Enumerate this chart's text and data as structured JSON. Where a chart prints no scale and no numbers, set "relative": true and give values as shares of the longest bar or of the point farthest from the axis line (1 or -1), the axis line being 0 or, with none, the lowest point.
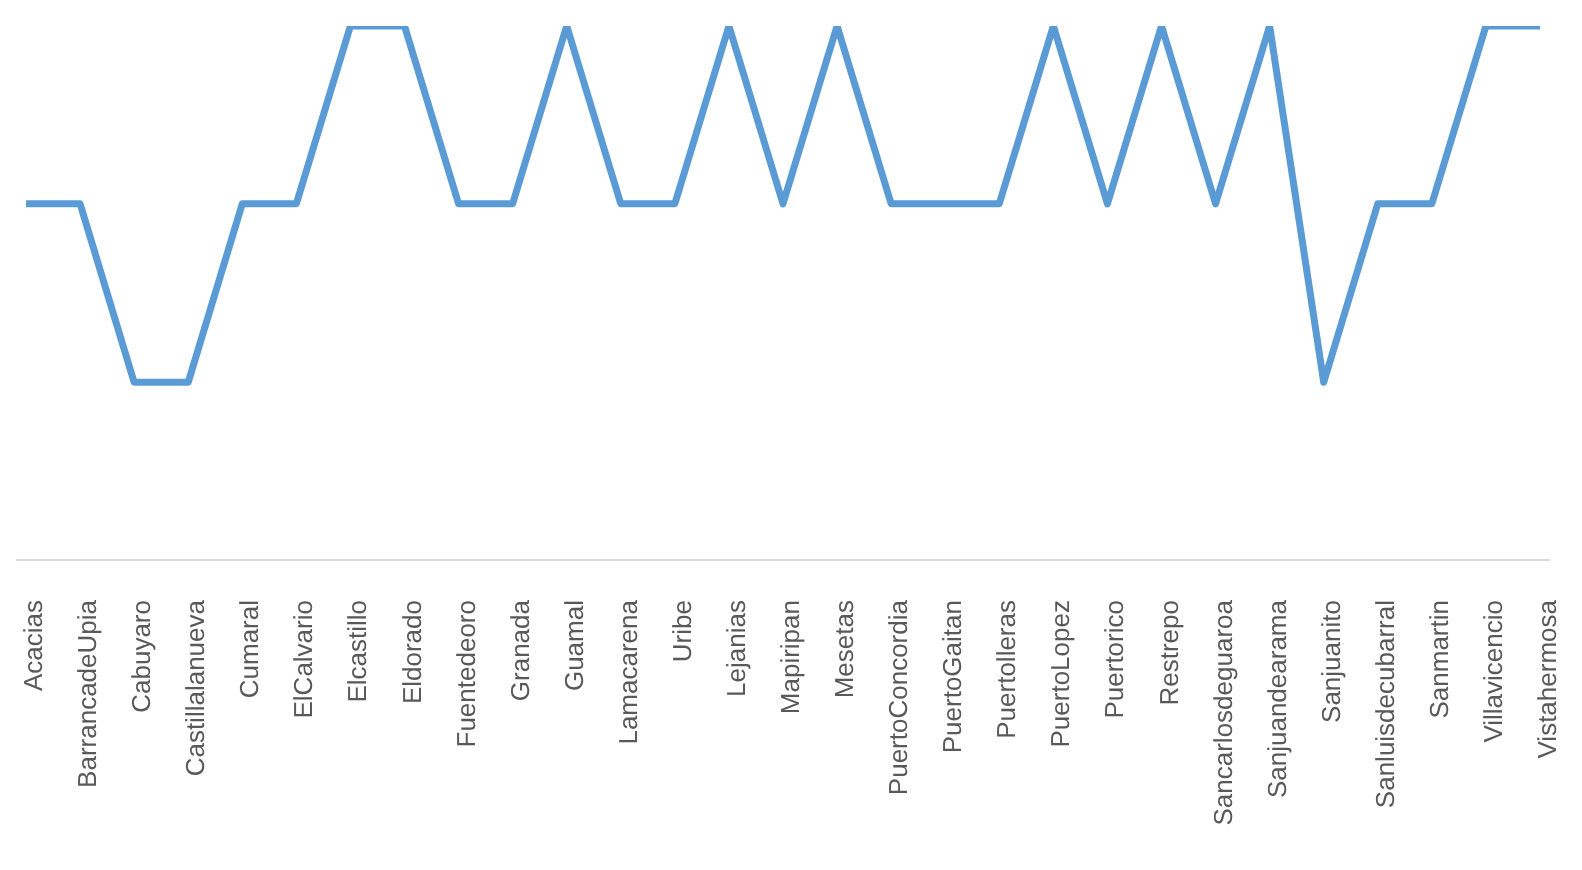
{
  "chart_data": {
    "type": "line",
    "relative": true,
    "categories": [
      "Acacias",
      "BarrancadeUpia",
      "Cabuyaro",
      "Castillalanueva",
      "Cumaral",
      "ElCalvario",
      "Elcastillo",
      "Eldorado",
      "Fuentedeoro",
      "Granada",
      "Guamal",
      "Lamacarena",
      "Uribe",
      "Lejanias",
      "Mapiripan",
      "Mesetas",
      "PuertoConcordia",
      "PuertoGaitan",
      "Puertolleras",
      "PuertoLopez",
      "Puertorico",
      "Restrepo",
      "Sancarlosdeguaroa",
      "Sanjuandearama",
      "Sanjuanito",
      "Sanluisdecubarral",
      "Sanmartin",
      "Villavicencio",
      "Vistahermosa"
    ],
    "series": [
      {
        "color": "#5b9bd5",
        "values": [
          0.667,
          0.667,
          0.333,
          0.333,
          0.667,
          0.667,
          1,
          1,
          0.667,
          0.667,
          1,
          0.667,
          0.667,
          1,
          0.667,
          1,
          0.667,
          0.667,
          0.667,
          1,
          0.667,
          1,
          0.667,
          1,
          0.333,
          0.667,
          0.667,
          1,
          1
        ]
      }
    ],
    "marker": "none",
    "line_style": "solid",
    "grid": false,
    "legend": false
  }
}
